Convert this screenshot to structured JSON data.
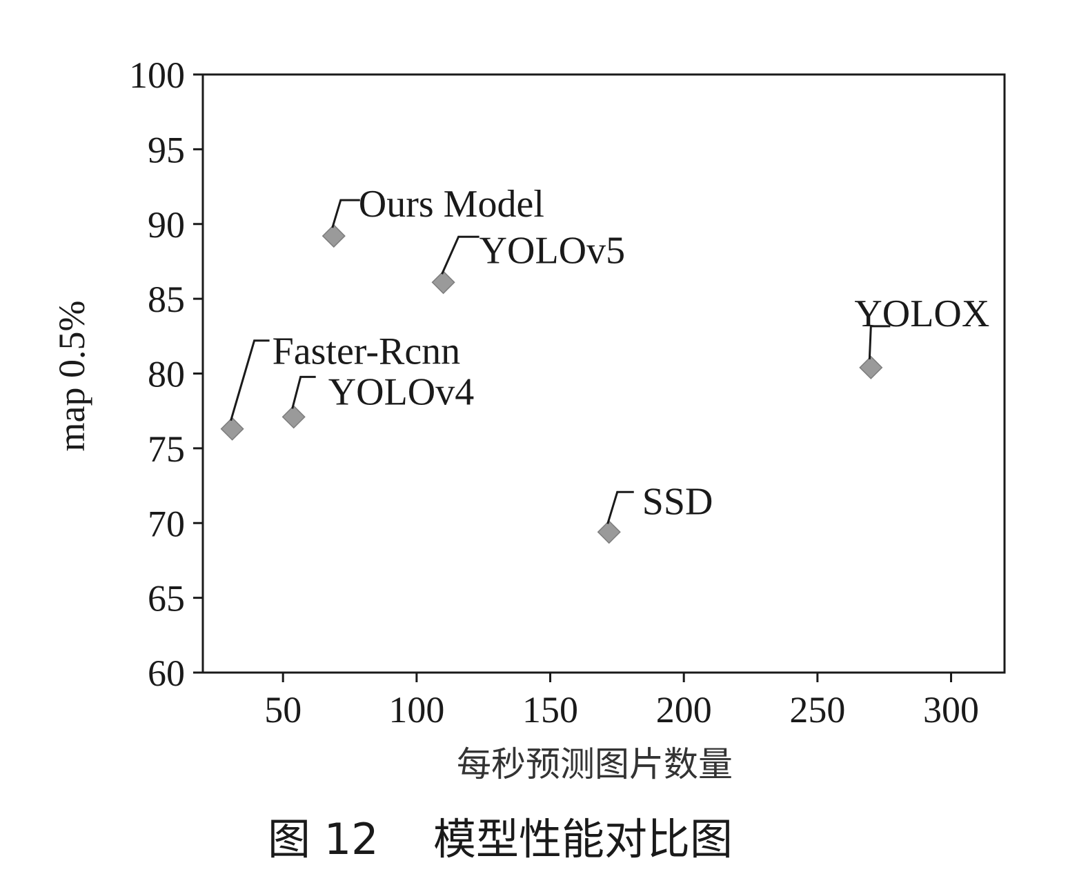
{
  "chart_data": {
    "type": "scatter",
    "xlabel": "每秒预测图片数量",
    "ylabel": "map 0.5%",
    "xlim": [
      20,
      320
    ],
    "ylim": [
      60,
      100
    ],
    "x_ticks": [
      50,
      100,
      150,
      200,
      250,
      300
    ],
    "y_ticks": [
      60,
      65,
      70,
      75,
      80,
      85,
      90,
      95,
      100
    ],
    "grid": false,
    "marker": "diamond",
    "marker_color": "#9a9a9a",
    "points": [
      {
        "label": "Ours Model",
        "x": 69,
        "y": 89.2
      },
      {
        "label": "YOLOv5",
        "x": 110,
        "y": 86.1
      },
      {
        "label": "YOLOX",
        "x": 270,
        "y": 80.4
      },
      {
        "label": "Faster-Rcnn",
        "x": 31,
        "y": 76.3
      },
      {
        "label": "YOLOv4",
        "x": 54,
        "y": 77.1
      },
      {
        "label": "SSD",
        "x": 172,
        "y": 69.4
      }
    ]
  },
  "caption": {
    "figure_number": "图 12",
    "title": "模型性能对比图"
  }
}
